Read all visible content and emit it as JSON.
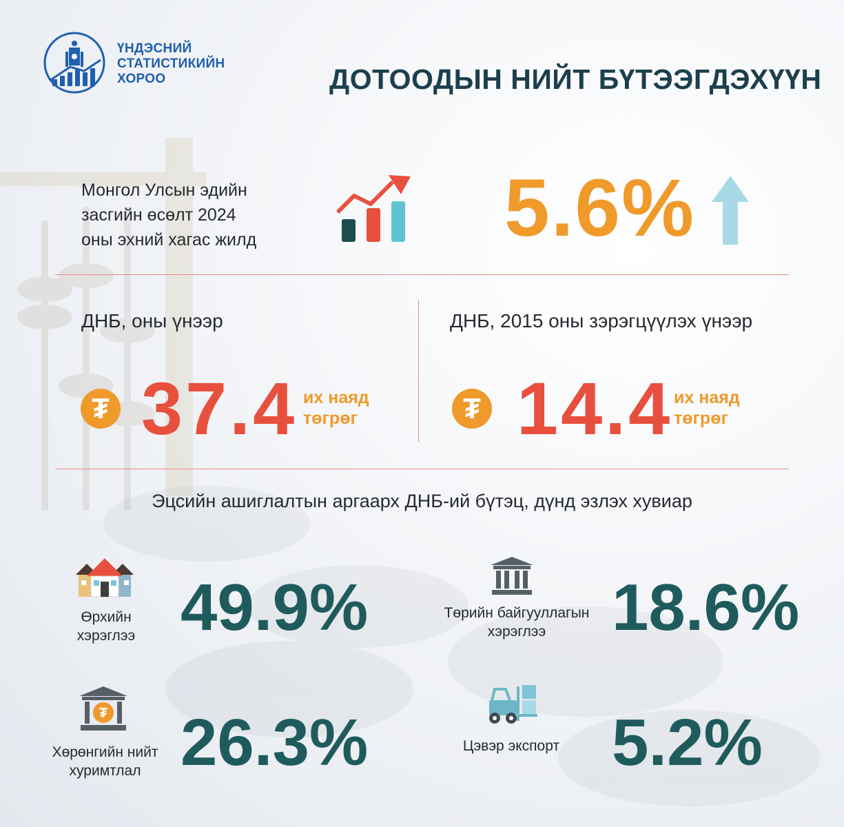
{
  "header": {
    "org_name_lines": [
      "ҮНДЭСНИЙ",
      "СТАТИСТИКИЙН",
      "ХОРОО"
    ],
    "title": "ДОТООДЫН НИЙТ БҮТЭЭГДЭХҮҮН"
  },
  "growth": {
    "label_lines": [
      "Монгол Улсын эдийн",
      "засгийн өсөлт 2024",
      "оны эхний хагас жилд"
    ],
    "value": "5.6%",
    "icon": "growth-chart-icon",
    "trend_icon": "up-arrow-icon"
  },
  "gdp_current": {
    "label": "ДНБ, оны үнээр",
    "currency_symbol": "₮",
    "value": "37.4",
    "unit_lines": [
      "их наяд",
      "төгрөг"
    ]
  },
  "gdp_constant": {
    "label": "ДНБ, 2015 оны зэрэгцүүлэх үнээр",
    "currency_symbol": "₮",
    "value": "14.4",
    "unit_lines": [
      "их наяд",
      "төгрөг"
    ]
  },
  "structure": {
    "title": "Эцсийн ашиглалтын аргаарх ДНБ-ий бүтэц, дүнд эзлэх хувиар",
    "items": [
      {
        "label_lines": [
          "Өрхийн",
          "хэрэглээ"
        ],
        "value": "49.9%",
        "icon": "house-icon"
      },
      {
        "label_lines": [
          "Төрийн байгууллагын",
          "хэрэглээ"
        ],
        "value": "18.6%",
        "icon": "government-building-icon"
      },
      {
        "label_lines": [
          "Хөрөнгийн нийт",
          "хуримтлал"
        ],
        "value": "26.3%",
        "icon": "bank-coin-icon"
      },
      {
        "label_lines": [
          "Цэвэр экспорт"
        ],
        "value": "5.2%",
        "icon": "forklift-icon"
      }
    ]
  },
  "colors": {
    "title": "#1d3f4d",
    "orange": "#ef9a2b",
    "red": "#e8503e",
    "teal": "#1f5b5c",
    "divider": "#e58f7e",
    "logo_blue": "#1f5fb0"
  }
}
